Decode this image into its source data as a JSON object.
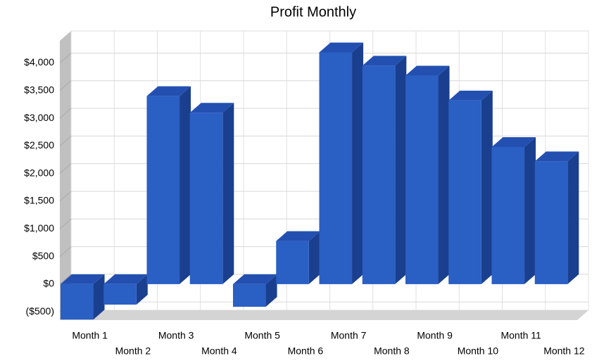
{
  "chart_data": {
    "type": "bar",
    "title": "Profit Monthly",
    "categories": [
      "Month 1",
      "Month 2",
      "Month 3",
      "Month 4",
      "Month 5",
      "Month 6",
      "Month 7",
      "Month 8",
      "Month 9",
      "Month 10",
      "Month 11",
      "Month 12"
    ],
    "values": [
      -640,
      -370,
      3400,
      3100,
      -410,
      780,
      4190,
      3950,
      3770,
      3320,
      2480,
      2220
    ],
    "color": "#2a5fc4",
    "ylim": [
      -650,
      4400
    ],
    "yticks": [
      {
        "value": -500,
        "label": "($500)"
      },
      {
        "value": 0,
        "label": "$0"
      },
      {
        "value": 500,
        "label": "$500"
      },
      {
        "value": 1000,
        "label": "$1,000"
      },
      {
        "value": 1500,
        "label": "$1,500"
      },
      {
        "value": 2000,
        "label": "$2,000"
      },
      {
        "value": 2500,
        "label": "$2,500"
      },
      {
        "value": 3000,
        "label": "$3,000"
      },
      {
        "value": 3500,
        "label": "$3,500"
      },
      {
        "value": 4000,
        "label": "$4,000"
      }
    ],
    "grid": true
  }
}
